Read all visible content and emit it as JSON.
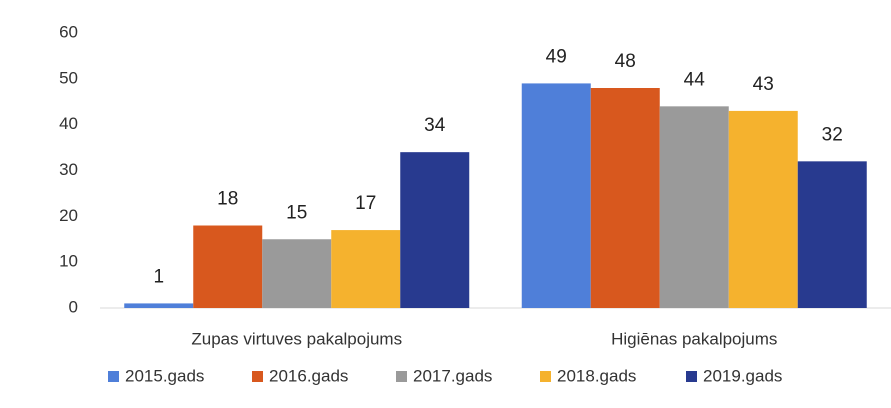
{
  "chart_data": {
    "type": "bar",
    "categories": [
      "Zupas virtuves pakalpojums",
      "Higiēnas pakalpojums"
    ],
    "series": [
      {
        "name": "2015.gads",
        "color": "#4f7fd9",
        "values": [
          1,
          49
        ]
      },
      {
        "name": "2016.gads",
        "color": "#d8581e",
        "values": [
          18,
          48
        ]
      },
      {
        "name": "2017.gads",
        "color": "#9a9a9a",
        "values": [
          15,
          44
        ]
      },
      {
        "name": "2018.gads",
        "color": "#f5b22e",
        "values": [
          17,
          43
        ]
      },
      {
        "name": "2019.gads",
        "color": "#283a8f",
        "values": [
          34,
          32
        ]
      }
    ],
    "ylim": [
      0,
      60
    ],
    "yticks": [
      0,
      10,
      20,
      30,
      40,
      50,
      60
    ],
    "grid": false,
    "legend": "bottom"
  }
}
